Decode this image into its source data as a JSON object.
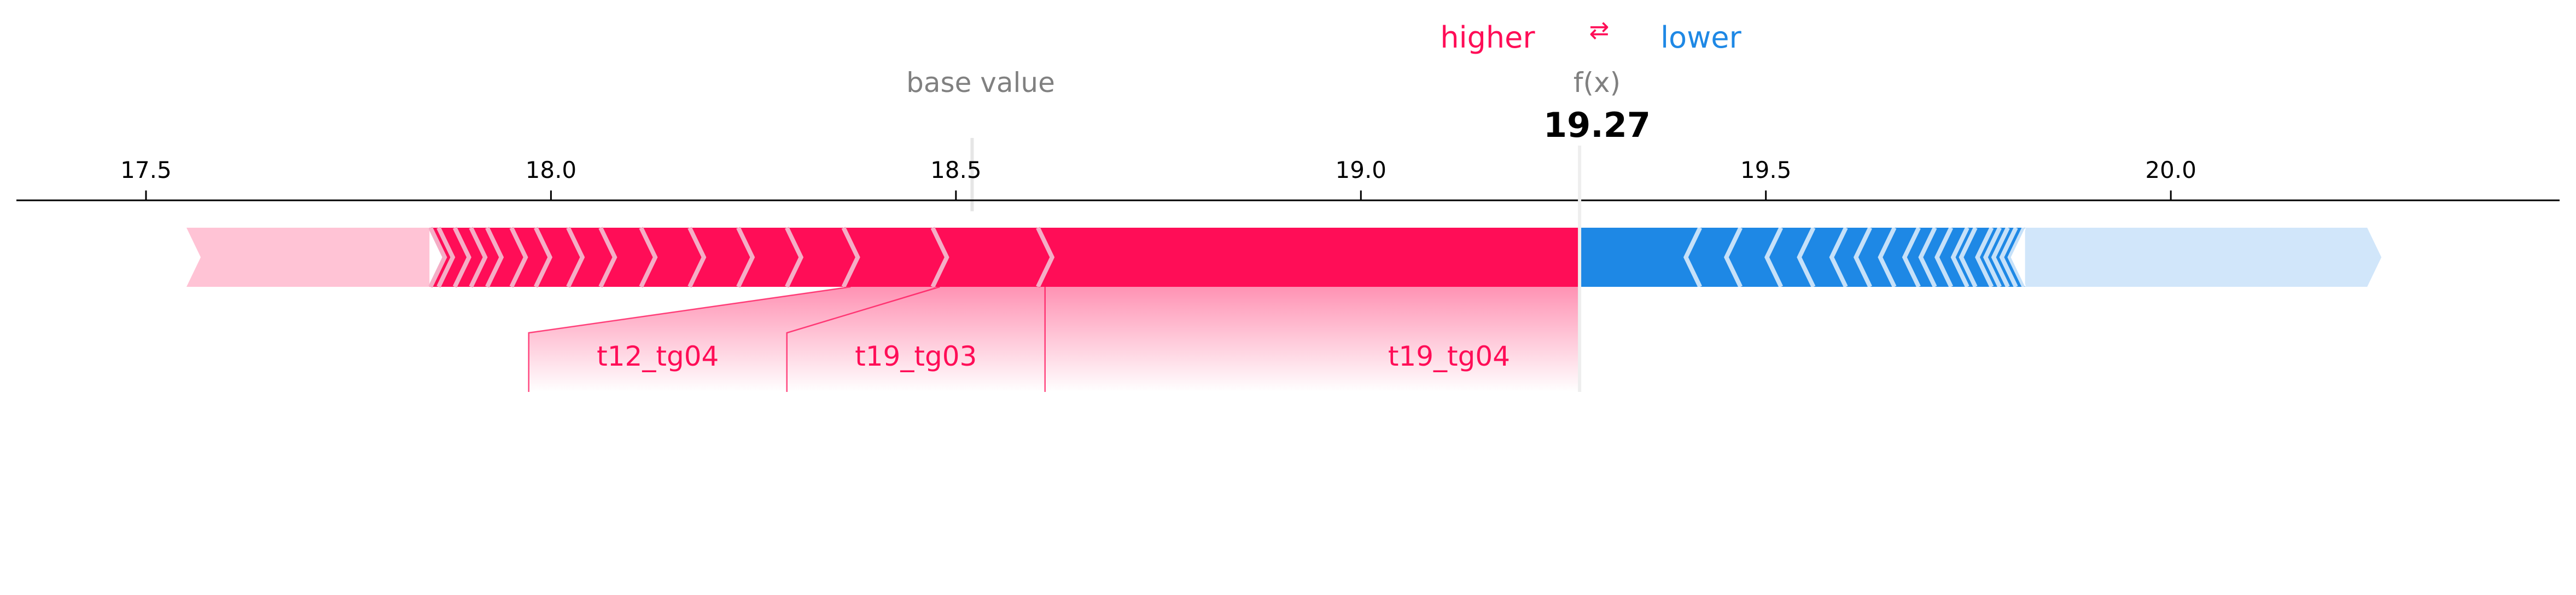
{
  "legend": {
    "higher_label": "higher",
    "lower_label": "lower",
    "arrows_glyph": "⇄",
    "higher_color": "#ff0d57",
    "lower_color": "#1e88e5"
  },
  "base_value": {
    "label": "base value",
    "value": 18.52
  },
  "output": {
    "label": "f(x)",
    "value": 19.27,
    "value_text": "19.27"
  },
  "chart_data": {
    "type": "force",
    "title": "",
    "xlim": [
      17.34,
      20.48
    ],
    "ticks": [
      "17.5",
      "18.0",
      "18.5",
      "19.0",
      "19.5",
      "20.0"
    ],
    "grid": false,
    "colors": {
      "positive": "#ff0d57",
      "negative": "#1e88e5",
      "positive_faded": "#ffc3d5",
      "negative_faded": "#d1e6fa",
      "separator": "#f4aec6",
      "label_text": "#ff0d57",
      "tick_text": "#000000",
      "muted_text": "#808080"
    },
    "positive_total_range": [
      17.55,
      19.27
    ],
    "negative_total_range": [
      19.27,
      20.26
    ],
    "positive_features": [
      {
        "name": "t19_tg04",
        "start": 18.61,
        "end": 19.27
      },
      {
        "name": "t19_tg03",
        "start": 18.48,
        "end": 18.61
      },
      {
        "name": "t12_tg04",
        "start": 18.37,
        "end": 18.48
      }
    ],
    "positive_unlabeled_boundaries": [
      18.3,
      18.24,
      18.18,
      18.12,
      18.07,
      18.03,
      17.99,
      17.96,
      17.93,
      17.91,
      17.89,
      17.87,
      17.86
    ],
    "positive_faded_start": 17.85,
    "negative_boundaries": [
      19.41,
      19.46,
      19.51,
      19.55,
      19.59,
      19.62,
      19.65,
      19.68,
      19.7,
      19.72,
      19.74,
      19.75,
      19.77,
      19.78,
      19.79,
      19.8,
      19.81
    ],
    "negative_faded_start": 19.82
  }
}
